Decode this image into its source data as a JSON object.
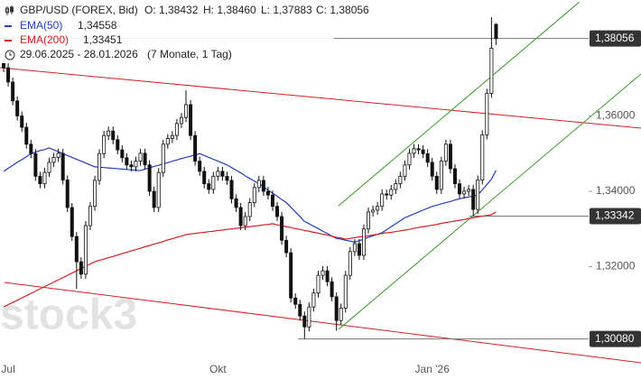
{
  "chart_data": {
    "type": "candlestick",
    "header": {
      "instrument": "GBP/USD (FOREX, Bid)",
      "ohlc_labels": [
        "O: 1,38432",
        "H: 1,38460",
        "L: 1,37883",
        "C: 1,38056"
      ],
      "range": "29.06.2025 - 28.01.2026",
      "duration": "(7 Monate, 1 Tag)"
    },
    "watermark": "stock3",
    "categories": [
      null,
      "Jul",
      null,
      null,
      null,
      null,
      null,
      null,
      null,
      null,
      null,
      null,
      null,
      null,
      null,
      null,
      null,
      null,
      null,
      null,
      null,
      null,
      null,
      null,
      null,
      null,
      null,
      null,
      null,
      null,
      null,
      null,
      null,
      null,
      null,
      null,
      null,
      null,
      null,
      null,
      null,
      null,
      null,
      null,
      null,
      null,
      null,
      "Okt",
      null,
      null,
      null,
      null,
      null,
      null,
      null,
      null,
      null,
      null,
      null,
      null,
      null,
      null,
      null,
      null,
      null,
      null,
      null,
      null,
      null,
      null,
      null,
      null,
      null,
      null,
      null,
      null,
      null,
      null,
      null,
      null,
      null,
      null,
      null,
      null,
      null,
      null,
      null,
      null,
      null,
      null,
      null,
      null,
      null,
      null,
      "Jan '26",
      null,
      null,
      null,
      null,
      null,
      null,
      null,
      null,
      null,
      null,
      null,
      null,
      null,
      null
    ],
    "open": [
      1.374,
      1.3728,
      1.369,
      1.364,
      1.36,
      1.357,
      1.3525,
      1.35,
      1.344,
      1.342,
      1.345,
      1.3477,
      1.349,
      1.3501,
      1.343,
      1.3357,
      1.328,
      1.3213,
      1.318,
      1.3309,
      1.336,
      1.3429,
      1.35,
      1.3548,
      1.356,
      1.3537,
      1.351,
      1.3489,
      1.347,
      1.3465,
      1.348,
      1.3501,
      1.347,
      1.34,
      1.3357,
      1.345,
      1.3525,
      1.354,
      1.3548,
      1.358,
      1.3596,
      1.363,
      1.3548,
      1.348,
      1.3453,
      1.342,
      1.3405,
      1.344,
      1.3453,
      1.344,
      1.3429,
      1.338,
      1.3357,
      1.3309,
      1.3333,
      1.337,
      1.341,
      1.3429,
      1.34,
      1.339,
      1.336,
      1.3333,
      1.327,
      1.3237,
      1.3117,
      1.31,
      1.3069,
      1.304,
      1.3093,
      1.313,
      1.3177,
      1.3189,
      1.316,
      1.312,
      1.3057,
      1.309,
      1.3177,
      1.324,
      1.3261,
      1.323,
      1.33,
      1.3345,
      1.335,
      1.336,
      1.3393,
      1.339,
      1.3405,
      1.342,
      1.344,
      1.347,
      1.3501,
      1.3513,
      1.351,
      1.35,
      1.3477,
      1.344,
      1.3405,
      1.348,
      1.3525,
      1.346,
      1.342,
      1.3393,
      1.34,
      1.3405,
      1.3352,
      1.343,
      1.355,
      1.366,
      1.38432
    ],
    "high": [
      1.3752,
      1.374,
      1.3702,
      1.3652,
      1.3612,
      1.3582,
      1.3537,
      1.3512,
      1.3452,
      1.3462,
      1.3489,
      1.3502,
      1.3513,
      1.3513,
      1.3442,
      1.3369,
      1.3292,
      1.3225,
      1.3321,
      1.3372,
      1.3441,
      1.3512,
      1.356,
      1.3572,
      1.3572,
      1.3549,
      1.3522,
      1.3501,
      1.3482,
      1.3492,
      1.3513,
      1.3513,
      1.3482,
      1.3412,
      1.3462,
      1.3537,
      1.3552,
      1.356,
      1.3592,
      1.3608,
      1.3668,
      1.3642,
      1.356,
      1.3492,
      1.3465,
      1.3432,
      1.3452,
      1.3465,
      1.3465,
      1.3452,
      1.3441,
      1.3392,
      1.3369,
      1.3345,
      1.3382,
      1.3422,
      1.3441,
      1.3441,
      1.3412,
      1.3402,
      1.3372,
      1.3345,
      1.3282,
      1.3249,
      1.3129,
      1.3112,
      1.3081,
      1.3105,
      1.3142,
      1.3189,
      1.3201,
      1.3201,
      1.3172,
      1.3132,
      1.3102,
      1.3189,
      1.3252,
      1.3273,
      1.3273,
      1.3312,
      1.3357,
      1.3362,
      1.3372,
      1.3405,
      1.3405,
      1.3417,
      1.3432,
      1.3452,
      1.3482,
      1.3513,
      1.3525,
      1.3525,
      1.3522,
      1.3512,
      1.3489,
      1.3452,
      1.3492,
      1.3537,
      1.3537,
      1.3472,
      1.3432,
      1.3412,
      1.3417,
      1.3417,
      1.3442,
      1.3562,
      1.3672,
      1.3862,
      1.3846
    ],
    "low": [
      1.3716,
      1.3678,
      1.3628,
      1.3588,
      1.3558,
      1.3513,
      1.3488,
      1.3428,
      1.3408,
      1.3408,
      1.3438,
      1.3465,
      1.3478,
      1.3418,
      1.3345,
      1.3268,
      1.3141,
      1.3168,
      1.3168,
      1.3297,
      1.3348,
      1.3417,
      1.3488,
      1.3536,
      1.3525,
      1.3498,
      1.3477,
      1.3458,
      1.3453,
      1.3453,
      1.3468,
      1.3458,
      1.3388,
      1.3345,
      1.3345,
      1.3438,
      1.3513,
      1.3528,
      1.3536,
      1.3568,
      1.3584,
      1.3536,
      1.3468,
      1.3441,
      1.3408,
      1.3393,
      1.3393,
      1.3428,
      1.3428,
      1.3417,
      1.3368,
      1.3345,
      1.3297,
      1.3297,
      1.3321,
      1.3358,
      1.3398,
      1.3388,
      1.3378,
      1.3348,
      1.3321,
      1.3258,
      1.3225,
      1.3105,
      1.3088,
      1.3057,
      1.3008,
      1.3028,
      1.3081,
      1.3118,
      1.3165,
      1.3148,
      1.3108,
      1.303,
      1.3045,
      1.3078,
      1.3165,
      1.3228,
      1.3218,
      1.3218,
      1.3288,
      1.3333,
      1.3338,
      1.3348,
      1.3378,
      1.3378,
      1.3393,
      1.3408,
      1.3428,
      1.3458,
      1.3489,
      1.3498,
      1.3488,
      1.3465,
      1.3428,
      1.3393,
      1.3393,
      1.3468,
      1.3448,
      1.3408,
      1.3381,
      1.3381,
      1.3388,
      1.3334,
      1.334,
      1.3418,
      1.3538,
      1.3648,
      1.37883
    ],
    "close": [
      1.3728,
      1.369,
      1.364,
      1.36,
      1.357,
      1.3525,
      1.35,
      1.344,
      1.342,
      1.345,
      1.3477,
      1.349,
      1.3501,
      1.343,
      1.3357,
      1.328,
      1.3213,
      1.318,
      1.3309,
      1.336,
      1.3429,
      1.35,
      1.3548,
      1.356,
      1.3537,
      1.351,
      1.3489,
      1.347,
      1.3465,
      1.348,
      1.3501,
      1.347,
      1.34,
      1.3357,
      1.345,
      1.3525,
      1.354,
      1.3548,
      1.358,
      1.3596,
      1.363,
      1.3548,
      1.348,
      1.3453,
      1.342,
      1.3405,
      1.344,
      1.3453,
      1.344,
      1.3429,
      1.338,
      1.3357,
      1.3309,
      1.3333,
      1.337,
      1.341,
      1.3429,
      1.34,
      1.339,
      1.336,
      1.3333,
      1.327,
      1.3237,
      1.3117,
      1.31,
      1.3069,
      1.304,
      1.3093,
      1.313,
      1.3177,
      1.3189,
      1.316,
      1.312,
      1.3057,
      1.309,
      1.3177,
      1.324,
      1.3261,
      1.323,
      1.33,
      1.3345,
      1.335,
      1.336,
      1.3393,
      1.339,
      1.3405,
      1.342,
      1.344,
      1.347,
      1.3501,
      1.3513,
      1.351,
      1.35,
      1.3477,
      1.344,
      1.3405,
      1.348,
      1.3525,
      1.346,
      1.342,
      1.3393,
      1.34,
      1.3405,
      1.3352,
      1.343,
      1.355,
      1.366,
      1.378,
      1.38056
    ],
    "series": [
      {
        "name": "EMA(50)",
        "color": "#1f3fbf",
        "legend_value": "1,34558",
        "values": [
          1.3453,
          1.3461,
          1.3469,
          1.3477,
          1.3484,
          1.3492,
          1.35,
          1.3504,
          1.3508,
          1.3511,
          1.3515,
          1.351,
          1.3505,
          1.35,
          1.3495,
          1.349,
          1.3485,
          1.348,
          1.3475,
          1.347,
          1.3465,
          1.3464,
          1.3463,
          1.3462,
          1.3461,
          1.346,
          1.3459,
          1.3458,
          1.3457,
          1.3456,
          1.3455,
          1.3459,
          1.3462,
          1.3466,
          1.3469,
          1.3473,
          1.3476,
          1.348,
          1.3483,
          1.3487,
          1.349,
          1.3493,
          1.3497,
          1.35,
          1.3495,
          1.349,
          1.3485,
          1.348,
          1.3475,
          1.347,
          1.3463,
          1.3456,
          1.3449,
          1.3441,
          1.3434,
          1.3427,
          1.342,
          1.3412,
          1.3403,
          1.3395,
          1.3387,
          1.3378,
          1.337,
          1.3358,
          1.3345,
          1.3333,
          1.332,
          1.3314,
          1.3307,
          1.3301,
          1.3294,
          1.3288,
          1.3281,
          1.3275,
          1.3273,
          1.327,
          1.3268,
          1.3265,
          1.3269,
          1.3273,
          1.3278,
          1.3282,
          1.3286,
          1.329,
          1.3298,
          1.3306,
          1.3314,
          1.3322,
          1.333,
          1.3335,
          1.334,
          1.3345,
          1.335,
          1.3355,
          1.336,
          1.3363,
          1.3367,
          1.337,
          1.3373,
          1.3377,
          1.338,
          1.3383,
          1.3385,
          1.3388,
          1.339,
          1.3404,
          1.3418,
          1.3432,
          1.34558
        ]
      },
      {
        "name": "EMA(200)",
        "color": "#d42020",
        "legend_value": "1,33451",
        "values": [
          1.3093,
          1.3099,
          1.3105,
          1.3111,
          1.3117,
          1.3123,
          1.3129,
          1.3135,
          1.3141,
          1.3147,
          1.3153,
          1.3159,
          1.3165,
          1.3171,
          1.3177,
          1.3183,
          1.3189,
          1.3195,
          1.3201,
          1.3207,
          1.3213,
          1.3217,
          1.322,
          1.3224,
          1.3227,
          1.3231,
          1.3235,
          1.3238,
          1.3242,
          1.3245,
          1.3249,
          1.3253,
          1.3256,
          1.326,
          1.3263,
          1.3267,
          1.3271,
          1.3274,
          1.3278,
          1.3281,
          1.3285,
          1.3287,
          1.3288,
          1.329,
          1.3291,
          1.3293,
          1.3294,
          1.3296,
          1.3297,
          1.3299,
          1.33,
          1.3302,
          1.3303,
          1.3305,
          1.3306,
          1.3308,
          1.3309,
          1.3311,
          1.3312,
          1.3314,
          1.3311,
          1.3309,
          1.3306,
          1.3304,
          1.3301,
          1.3299,
          1.3296,
          1.3294,
          1.3291,
          1.3289,
          1.3286,
          1.3284,
          1.3281,
          1.3278,
          1.3276,
          1.3273,
          1.3275,
          1.3277,
          1.3279,
          1.328,
          1.3282,
          1.3284,
          1.3286,
          1.3288,
          1.329,
          1.3291,
          1.3293,
          1.3295,
          1.3297,
          1.3299,
          1.3302,
          1.3304,
          1.3306,
          1.3308,
          1.331,
          1.3312,
          1.3315,
          1.3317,
          1.3319,
          1.3321,
          1.3323,
          1.3325,
          1.3328,
          1.333,
          1.3332,
          1.3334,
          1.3336,
          1.3338,
          1.33451
        ]
      }
    ],
    "price_labels": [
      {
        "value": 1.38056,
        "label": "1,38056"
      },
      {
        "value": 1.33342,
        "label": "1,33342"
      },
      {
        "value": 1.3008,
        "label": "1,30080"
      }
    ],
    "ylim": [
      1.29497,
      1.39078
    ],
    "yticks": [
      {
        "value": 1.36,
        "label": "1,36000"
      },
      {
        "value": 1.34,
        "label": "1,34000"
      },
      {
        "value": 1.32,
        "label": "1,32000"
      }
    ],
    "grid": false
  }
}
